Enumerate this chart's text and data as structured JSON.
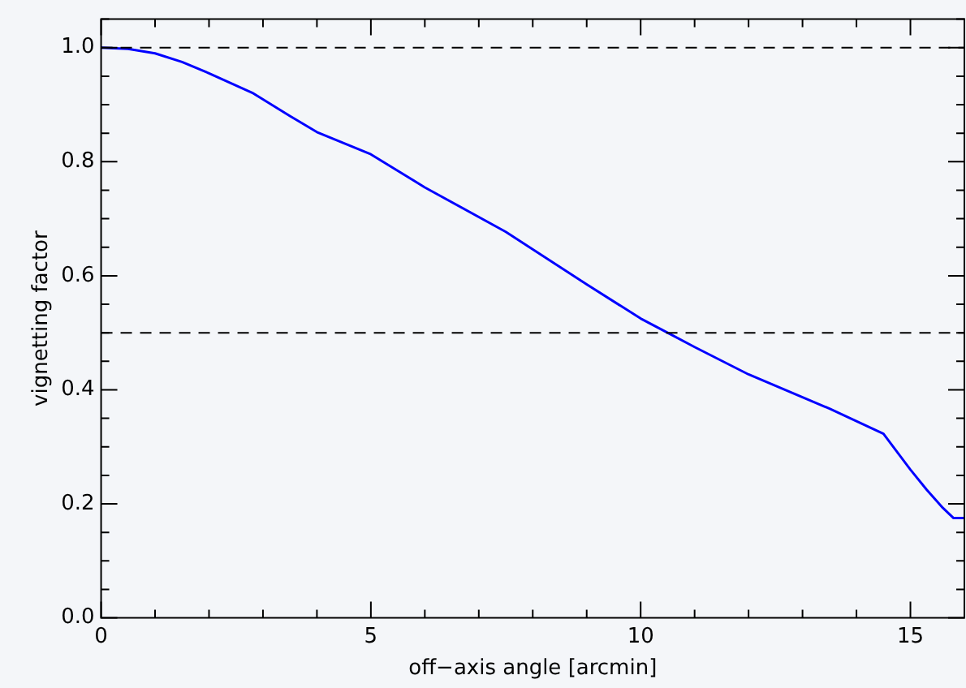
{
  "chart_data": {
    "type": "line",
    "xlabel": "off−axis angle [arcmin]",
    "ylabel": "vignetting factor",
    "x": [
      0,
      0.5,
      1,
      1.5,
      2,
      2.8,
      3.5,
      4,
      5,
      6,
      7.5,
      9,
      10,
      10.5,
      11,
      12,
      13.5,
      14.5,
      15,
      15.3,
      15.6,
      15.8,
      16
    ],
    "series": [
      {
        "color": "#0000ff",
        "values": [
          1.0,
          0.998,
          0.99,
          0.975,
          0.955,
          0.921,
          0.88,
          0.852,
          0.813,
          0.755,
          0.677,
          0.585,
          0.525,
          0.5,
          0.475,
          0.427,
          0.367,
          0.323,
          0.26,
          0.225,
          0.193,
          0.175,
          0.175
        ]
      }
    ],
    "xlim": [
      0,
      16
    ],
    "ylim": [
      0,
      1.05
    ],
    "xticks": [
      0,
      {
        "value": 1,
        "label": null
      },
      {
        "value": 2,
        "label": null
      },
      {
        "value": 3,
        "label": null
      },
      {
        "value": 4,
        "label": null
      },
      5,
      {
        "value": 6,
        "label": null
      },
      {
        "value": 7,
        "label": null
      },
      {
        "value": 8,
        "label": null
      },
      {
        "value": 9,
        "label": null
      },
      10,
      {
        "value": 11,
        "label": null
      },
      {
        "value": 12,
        "label": null
      },
      {
        "value": 13,
        "label": null
      },
      {
        "value": 14,
        "label": null
      },
      15,
      {
        "value": 16,
        "label": null
      }
    ],
    "yticks": [
      {
        "value": 0,
        "label": "0.0"
      },
      {
        "value": 0.05,
        "label": null
      },
      {
        "value": 0.1,
        "label": null
      },
      {
        "value": 0.15,
        "label": null
      },
      0.2,
      {
        "value": 0.25,
        "label": null
      },
      {
        "value": 0.3,
        "label": null
      },
      {
        "value": 0.35,
        "label": null
      },
      0.4,
      {
        "value": 0.45,
        "label": null
      },
      {
        "value": 0.5,
        "label": null
      },
      {
        "value": 0.55,
        "label": null
      },
      0.6,
      {
        "value": 0.65,
        "label": null
      },
      {
        "value": 0.7,
        "label": null
      },
      {
        "value": 0.75,
        "label": null
      },
      0.8,
      {
        "value": 0.85,
        "label": null
      },
      {
        "value": 0.9,
        "label": null
      },
      {
        "value": 0.95,
        "label": null
      },
      {
        "value": 1,
        "label": "1.0"
      },
      {
        "value": 1.05,
        "label": null
      }
    ],
    "ref_lines": [
      {
        "axis": "y",
        "value": 1.0,
        "color": "#000000",
        "line_style": "dashed"
      },
      {
        "axis": "y",
        "value": 0.5,
        "color": "#000000",
        "line_style": "dashed"
      }
    ],
    "grid": false,
    "legend": false,
    "marker": "none",
    "line_style": "solid"
  }
}
